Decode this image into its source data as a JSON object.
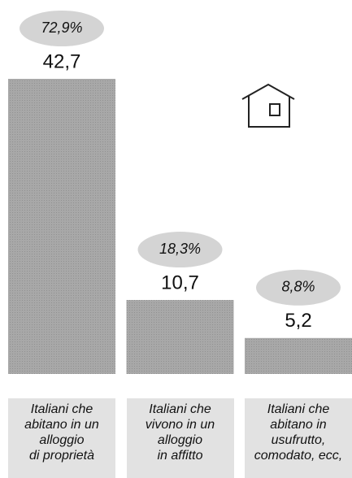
{
  "chart_data": {
    "type": "bar",
    "categories": [
      "Italiani che\nabitano in un\nalloggio\ndi proprietà",
      "Italiani che\nvivono in un\nalloggio\nin affitto",
      "Italiani che\nabitano in\nusufrutto,\ncomodato, ecc,"
    ],
    "values": [
      42.7,
      10.7,
      5.2
    ],
    "value_labels": [
      "42,7",
      "10,7",
      "5,2"
    ],
    "percentages": [
      72.9,
      18.3,
      8.8
    ],
    "percentage_labels": [
      "72,9%",
      "18,3%",
      "8,8%"
    ],
    "color": "#a8a8a8"
  }
}
